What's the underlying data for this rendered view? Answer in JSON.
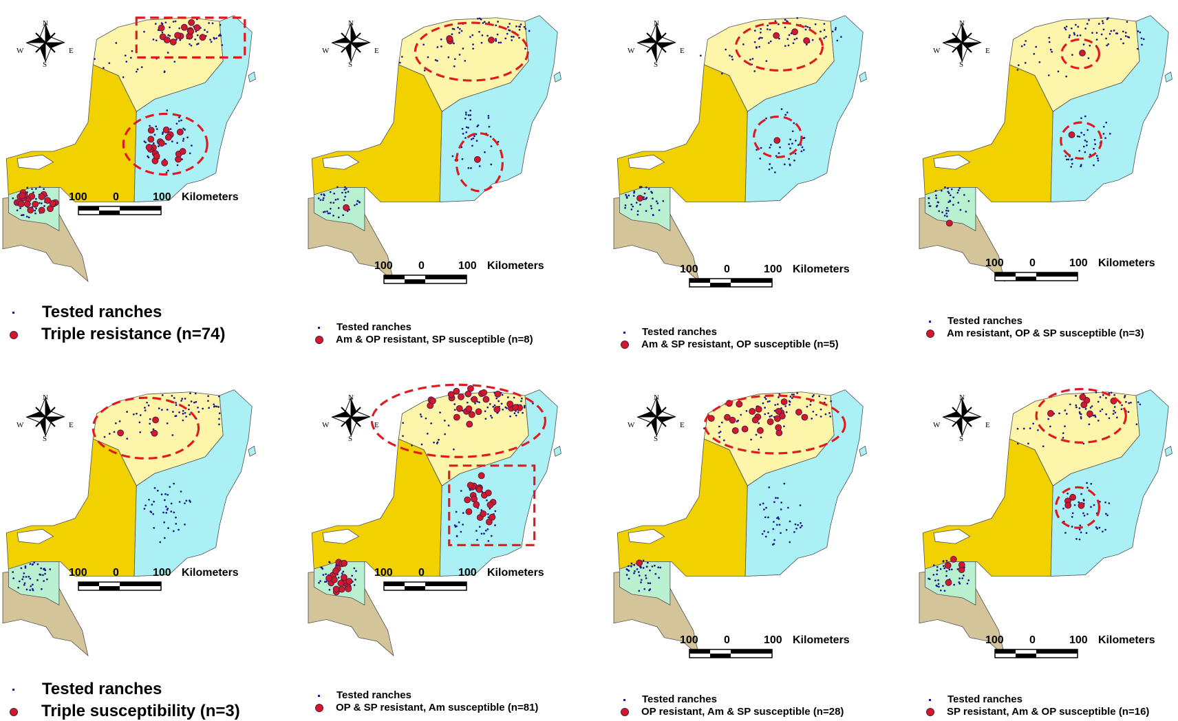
{
  "compass": {
    "n": "N",
    "s": "S",
    "e": "E",
    "w": "W"
  },
  "scale": {
    "left": "100",
    "mid": "0",
    "right": "100",
    "unit": "Kilometers"
  },
  "colors": {
    "region_light_yellow": "#fdf5a9",
    "region_yellow": "#f2d100",
    "region_cyan": "#aaf0f5",
    "region_green": "#b8f0d0",
    "region_tan": "#d4c49a",
    "ranch_dot": "#1a1a8c",
    "result_marker": "#d3182a",
    "highlight_outline": "#e0191f"
  },
  "legend_labels": {
    "tested": "Tested ranches"
  },
  "panels": [
    {
      "id": "p1",
      "legend": {
        "tested": "Tested ranches",
        "result": "Triple resistance (n=74)"
      }
    },
    {
      "id": "p2",
      "legend": {
        "tested": "Tested ranches",
        "result": "Am & OP resistant, SP susceptible (n=8)"
      }
    },
    {
      "id": "p3",
      "legend": {
        "tested": "Tested ranches",
        "result": "Am & SP resistant, OP susceptible (n=5)"
      }
    },
    {
      "id": "p4",
      "legend": {
        "tested": "Tested ranches",
        "result": "Am resistant, OP & SP susceptible (n=3)"
      }
    },
    {
      "id": "p5",
      "legend": {
        "tested": "Tested ranches",
        "result": "Triple susceptibility (n=3)"
      }
    },
    {
      "id": "p6",
      "legend": {
        "tested": "Tested ranches",
        "result": "OP & SP resistant, Am susceptible (n=81)"
      }
    },
    {
      "id": "p7",
      "legend": {
        "tested": "Tested ranches",
        "result": "OP resistant, Am & SP susceptible (n=28)"
      }
    },
    {
      "id": "p8",
      "legend": {
        "tested": "Tested ranches",
        "result": "SP resistant, Am & OP susceptible (n=16)"
      }
    }
  ]
}
